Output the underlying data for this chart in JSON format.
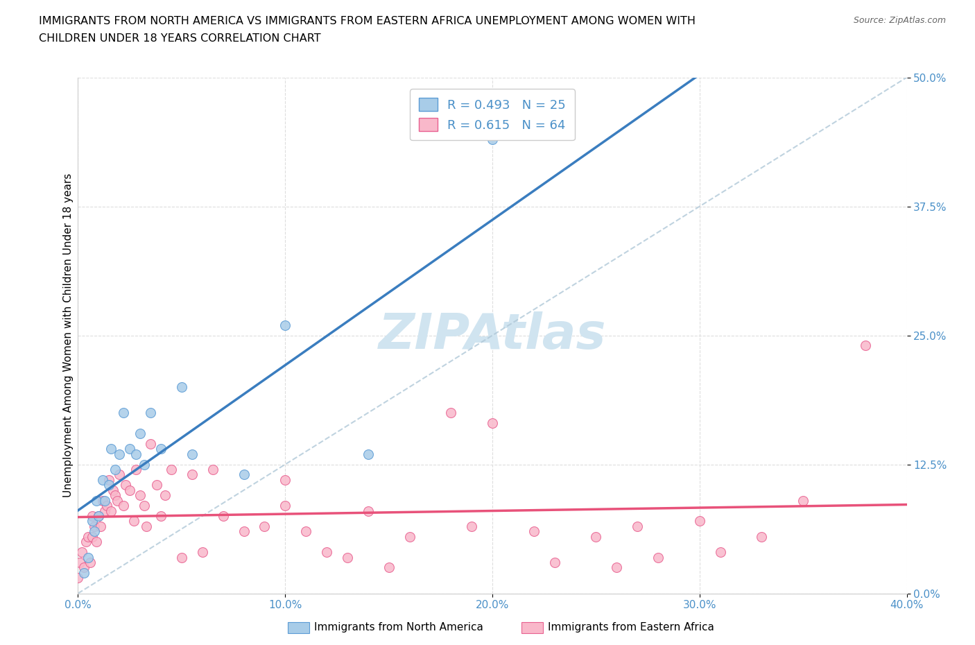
{
  "title_line1": "IMMIGRANTS FROM NORTH AMERICA VS IMMIGRANTS FROM EASTERN AFRICA UNEMPLOYMENT AMONG WOMEN WITH",
  "title_line2": "CHILDREN UNDER 18 YEARS CORRELATION CHART",
  "source": "Source: ZipAtlas.com",
  "ylabel": "Unemployment Among Women with Children Under 18 years",
  "xlim": [
    0.0,
    0.4
  ],
  "ylim": [
    0.0,
    0.5
  ],
  "background_color": "#ffffff",
  "north_america_r": 0.493,
  "north_america_n": 25,
  "eastern_africa_r": 0.615,
  "eastern_africa_n": 64,
  "north_america_scatter_color": "#a8cce8",
  "north_america_edge_color": "#5b9bd5",
  "eastern_africa_scatter_color": "#f9b8ca",
  "eastern_africa_edge_color": "#e86090",
  "north_america_line_color": "#3a7dbf",
  "eastern_africa_line_color": "#e8527a",
  "dashed_line_color": "#b0c8d8",
  "watermark_color": "#d0e4f0",
  "north_america_x": [
    0.003,
    0.005,
    0.007,
    0.008,
    0.009,
    0.01,
    0.012,
    0.013,
    0.015,
    0.016,
    0.018,
    0.02,
    0.022,
    0.025,
    0.028,
    0.03,
    0.032,
    0.035,
    0.04,
    0.05,
    0.055,
    0.08,
    0.1,
    0.14,
    0.2
  ],
  "north_america_y": [
    0.02,
    0.035,
    0.07,
    0.06,
    0.09,
    0.075,
    0.11,
    0.09,
    0.105,
    0.14,
    0.12,
    0.135,
    0.175,
    0.14,
    0.135,
    0.155,
    0.125,
    0.175,
    0.14,
    0.2,
    0.135,
    0.115,
    0.26,
    0.135,
    0.44
  ],
  "eastern_africa_x": [
    0.0,
    0.001,
    0.002,
    0.003,
    0.004,
    0.005,
    0.006,
    0.007,
    0.007,
    0.008,
    0.009,
    0.01,
    0.011,
    0.012,
    0.013,
    0.014,
    0.015,
    0.016,
    0.017,
    0.018,
    0.019,
    0.02,
    0.022,
    0.023,
    0.025,
    0.027,
    0.028,
    0.03,
    0.032,
    0.033,
    0.035,
    0.038,
    0.04,
    0.042,
    0.045,
    0.05,
    0.055,
    0.06,
    0.065,
    0.07,
    0.08,
    0.09,
    0.1,
    0.1,
    0.11,
    0.12,
    0.13,
    0.14,
    0.15,
    0.16,
    0.18,
    0.19,
    0.2,
    0.22,
    0.23,
    0.25,
    0.26,
    0.27,
    0.28,
    0.3,
    0.31,
    0.33,
    0.35,
    0.38
  ],
  "eastern_africa_y": [
    0.015,
    0.03,
    0.04,
    0.025,
    0.05,
    0.055,
    0.03,
    0.075,
    0.055,
    0.065,
    0.05,
    0.075,
    0.065,
    0.09,
    0.08,
    0.085,
    0.11,
    0.08,
    0.1,
    0.095,
    0.09,
    0.115,
    0.085,
    0.105,
    0.1,
    0.07,
    0.12,
    0.095,
    0.085,
    0.065,
    0.145,
    0.105,
    0.075,
    0.095,
    0.12,
    0.035,
    0.115,
    0.04,
    0.12,
    0.075,
    0.06,
    0.065,
    0.085,
    0.11,
    0.06,
    0.04,
    0.035,
    0.08,
    0.025,
    0.055,
    0.175,
    0.065,
    0.165,
    0.06,
    0.03,
    0.055,
    0.025,
    0.065,
    0.035,
    0.07,
    0.04,
    0.055,
    0.09,
    0.24
  ],
  "legend_label1": "Immigrants from North America",
  "legend_label2": "Immigrants from Eastern Africa"
}
